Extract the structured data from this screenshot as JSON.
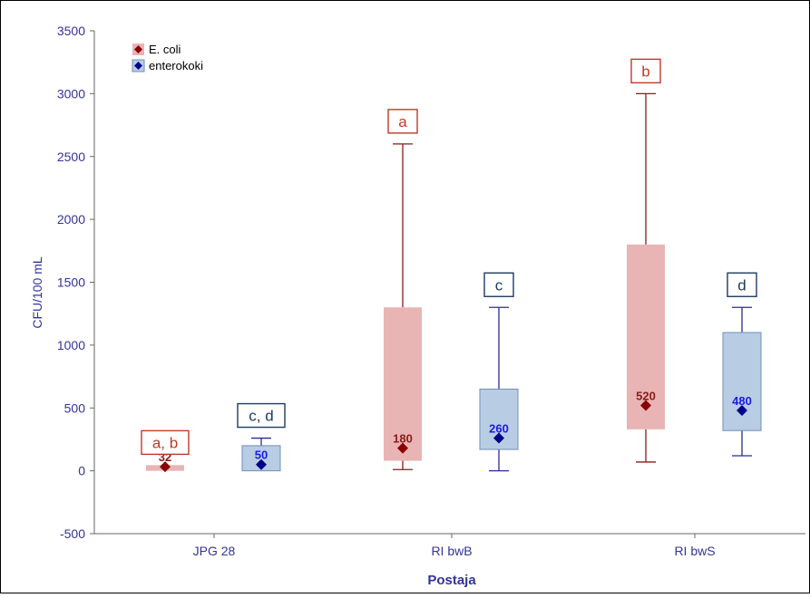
{
  "chart_data": {
    "type": "box",
    "xlabel": "Postaja",
    "ylabel": "CFU/100 mL",
    "ylim": [
      -500,
      3500
    ],
    "yticks": [
      -500,
      0,
      500,
      1000,
      1500,
      2000,
      2500,
      3000,
      3500
    ],
    "grid": false,
    "legend_position": "top-left",
    "categories": [
      "JPG 28",
      "RI bwB",
      "RI bwS"
    ],
    "series": [
      {
        "name": "E. coli",
        "box_color": "#e8b4b4",
        "marker_color": "#8b0000",
        "label_color": "#8b1a1a",
        "boxes": [
          {
            "median": 32,
            "q1": 0,
            "q3": 45,
            "whisker_low": null,
            "whisker_high": null,
            "group_label": "a, b"
          },
          {
            "median": 180,
            "q1": 80,
            "q3": 1300,
            "whisker_low": 10,
            "whisker_high": 2600,
            "group_label": "a"
          },
          {
            "median": 520,
            "q1": 330,
            "q3": 1800,
            "whisker_low": 70,
            "whisker_high": 3000,
            "group_label": "b"
          }
        ]
      },
      {
        "name": "enterokoki",
        "box_color": "#b8cce4",
        "marker_color": "#00008b",
        "label_color": "#1a1ae6",
        "boxes": [
          {
            "median": 50,
            "q1": 0,
            "q3": 200,
            "whisker_low": null,
            "whisker_high": 260,
            "group_label": "c, d"
          },
          {
            "median": 260,
            "q1": 170,
            "q3": 650,
            "whisker_low": 0,
            "whisker_high": 1300,
            "group_label": "c"
          },
          {
            "median": 480,
            "q1": 320,
            "q3": 1100,
            "whisker_low": 120,
            "whisker_high": 1300,
            "group_label": "d"
          }
        ]
      }
    ],
    "colors": {
      "axis_text": "#333399",
      "axis_line": "#666666",
      "ecoli_whisker": "#8b1a1a",
      "entero_whisker": "#2b2b99",
      "ecoli_label_border": "#c0392b",
      "entero_label_border": "#1f3a60"
    }
  }
}
